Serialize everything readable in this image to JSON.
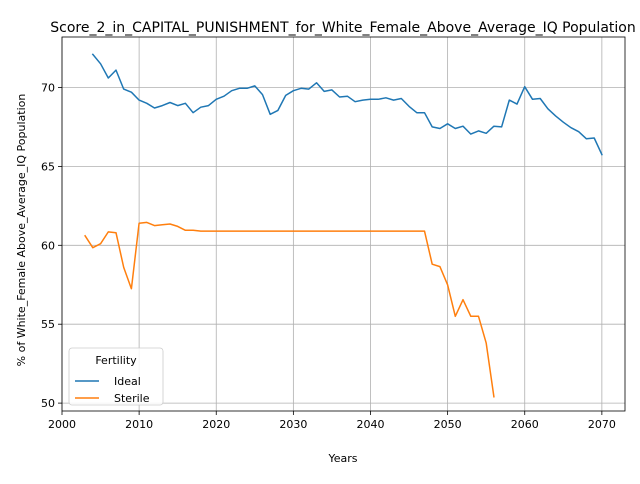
{
  "chart_data": {
    "type": "line",
    "title": "Score_2_in_CAPITAL_PUNISHMENT_for_White_Female_Above_Average_IQ Population",
    "xlabel": "Years",
    "ylabel": "% of White_Female Above_Average_IQ Population",
    "xlim": [
      2000,
      2073
    ],
    "ylim": [
      49.5,
      73.2
    ],
    "xticks": [
      2000,
      2010,
      2020,
      2030,
      2040,
      2050,
      2060,
      2070
    ],
    "yticks": [
      50,
      55,
      60,
      65,
      70
    ],
    "grid": true,
    "legend": {
      "title": "Fertility",
      "position": "lower-left"
    },
    "series": [
      {
        "name": "Ideal",
        "color": "#1f77b4",
        "x": [
          2004,
          2005,
          2006,
          2007,
          2008,
          2009,
          2010,
          2011,
          2012,
          2013,
          2014,
          2015,
          2016,
          2017,
          2018,
          2019,
          2020,
          2021,
          2022,
          2023,
          2024,
          2025,
          2026,
          2027,
          2028,
          2029,
          2030,
          2031,
          2032,
          2033,
          2034,
          2035,
          2036,
          2037,
          2038,
          2039,
          2040,
          2041,
          2042,
          2043,
          2044,
          2045,
          2046,
          2047,
          2048,
          2049,
          2050,
          2051,
          2052,
          2053,
          2054,
          2055,
          2056,
          2057,
          2058,
          2059,
          2060,
          2061,
          2062,
          2063,
          2064,
          2065,
          2066,
          2067,
          2068,
          2069,
          2070
        ],
        "y": [
          72.1,
          71.5,
          70.6,
          71.1,
          69.9,
          69.7,
          69.2,
          69.0,
          68.7,
          68.85,
          69.05,
          68.85,
          69.0,
          68.4,
          68.75,
          68.85,
          69.25,
          69.45,
          69.8,
          69.95,
          69.95,
          70.1,
          69.55,
          68.3,
          68.55,
          69.5,
          69.8,
          69.95,
          69.9,
          70.3,
          69.75,
          69.85,
          69.4,
          69.45,
          69.1,
          69.2,
          69.25,
          69.25,
          69.35,
          69.2,
          69.3,
          68.8,
          68.4,
          68.4,
          67.5,
          67.4,
          67.7,
          67.4,
          67.55,
          67.05,
          67.25,
          67.1,
          67.55,
          67.5,
          69.2,
          68.95,
          70.05,
          69.25,
          69.3,
          68.65,
          68.2,
          67.8,
          67.45,
          67.2,
          66.75,
          66.8,
          65.75
        ]
      },
      {
        "name": "Sterile",
        "color": "#ff7f0e",
        "x": [
          2003,
          2004,
          2005,
          2006,
          2007,
          2008,
          2009,
          2010,
          2011,
          2012,
          2013,
          2014,
          2015,
          2016,
          2017,
          2018,
          2019,
          2020,
          2021,
          2022,
          2023,
          2024,
          2025,
          2026,
          2027,
          2028,
          2029,
          2030,
          2031,
          2032,
          2033,
          2034,
          2035,
          2036,
          2037,
          2038,
          2039,
          2040,
          2041,
          2042,
          2043,
          2044,
          2045,
          2046,
          2047,
          2048,
          2049,
          2050,
          2051,
          2052,
          2053,
          2054,
          2055,
          2056
        ],
        "y": [
          60.6,
          59.85,
          60.1,
          60.85,
          60.8,
          58.6,
          57.25,
          61.4,
          61.45,
          61.25,
          61.3,
          61.35,
          61.2,
          60.95,
          60.95,
          60.9,
          60.9,
          60.9,
          60.9,
          60.9,
          60.9,
          60.9,
          60.9,
          60.9,
          60.9,
          60.9,
          60.9,
          60.9,
          60.9,
          60.9,
          60.9,
          60.9,
          60.9,
          60.9,
          60.9,
          60.9,
          60.9,
          60.9,
          60.9,
          60.9,
          60.9,
          60.9,
          60.9,
          60.9,
          60.9,
          58.8,
          58.65,
          57.5,
          55.5,
          56.55,
          55.5,
          55.5,
          53.8,
          50.4
        ]
      }
    ]
  }
}
